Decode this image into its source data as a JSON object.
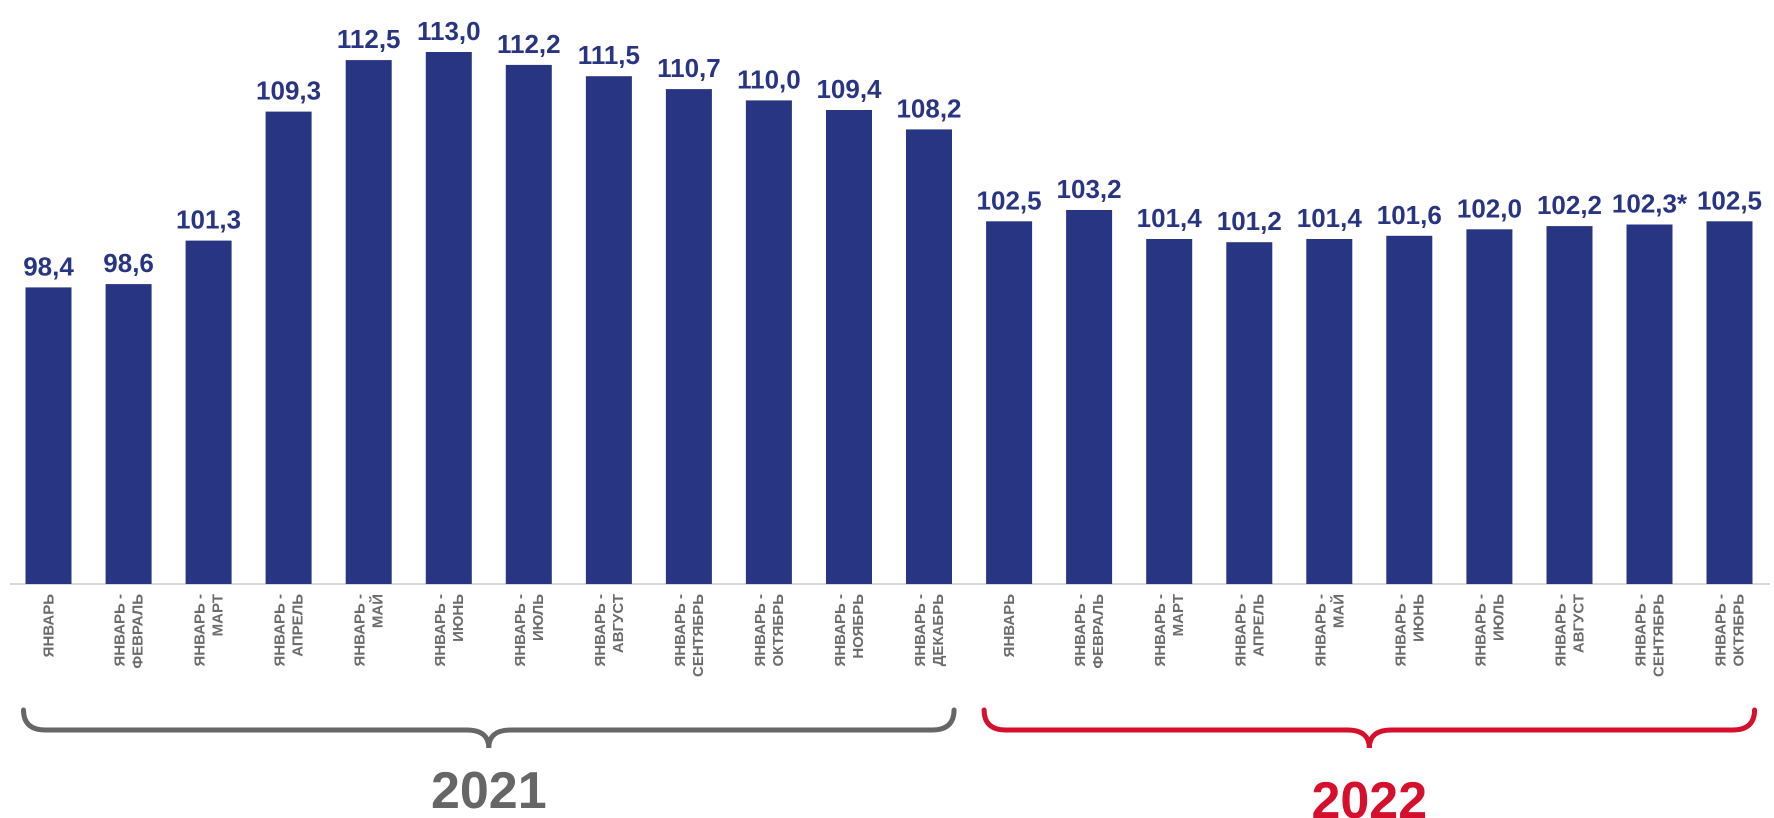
{
  "chart_data": {
    "type": "bar",
    "categories": [
      "ЯНВАРЬ",
      "ЯНВАРЬ - ФЕВРАЛЬ",
      "ЯНВАРЬ - МАРТ",
      "ЯНВАРЬ - АПРЕЛЬ",
      "ЯНВАРЬ - МАЙ",
      "ЯНВАРЬ - ИЮНЬ",
      "ЯНВАРЬ - ИЮЛЬ",
      "ЯНВАРЬ - АВГУСТ",
      "ЯНВАРЬ - СЕНТЯБРЬ",
      "ЯНВАРЬ - ОКТЯБРЬ",
      "ЯНВАРЬ - НОЯБРЬ",
      "ЯНВАРЬ - ДЕКАБРЬ",
      "ЯНВАРЬ",
      "ЯНВАРЬ - ФЕВРАЛЬ",
      "ЯНВАРЬ - МАРТ",
      "ЯНВАРЬ - АПРЕЛЬ",
      "ЯНВАРЬ - МАЙ",
      "ЯНВАРЬ - ИЮНЬ",
      "ЯНВАРЬ - ИЮЛЬ",
      "ЯНВАРЬ - АВГУСТ",
      "ЯНВАРЬ - СЕНТЯБРЬ",
      "ЯНВАРЬ - ОКТЯБРЬ"
    ],
    "values": [
      98.4,
      98.6,
      101.3,
      109.3,
      112.5,
      113.0,
      112.2,
      111.5,
      110.7,
      110.0,
      109.4,
      108.2,
      102.5,
      103.2,
      101.4,
      101.2,
      101.4,
      101.6,
      102.0,
      102.2,
      102.3,
      102.5
    ],
    "value_labels": [
      "98,4",
      "98,6",
      "101,3",
      "109,3",
      "112,5",
      "113,0",
      "112,2",
      "111,5",
      "110,7",
      "110,0",
      "109,4",
      "108,2",
      "102,5",
      "103,2",
      "101,4",
      "101,2",
      "101,4",
      "101,6",
      "102,0",
      "102,2",
      "102,3*",
      "102,5"
    ],
    "groups": [
      {
        "label": "2021",
        "color": "#666666",
        "count": 12
      },
      {
        "label": "2022",
        "color": "#d50f2c",
        "count": 10
      }
    ],
    "bar_color": "#283583",
    "label_color": "#283583",
    "tick_color": "#6b6b6b",
    "title": "",
    "xlabel": "",
    "ylabel": "",
    "ylim": [
      80,
      113
    ],
    "grid": false,
    "legend": "none"
  }
}
